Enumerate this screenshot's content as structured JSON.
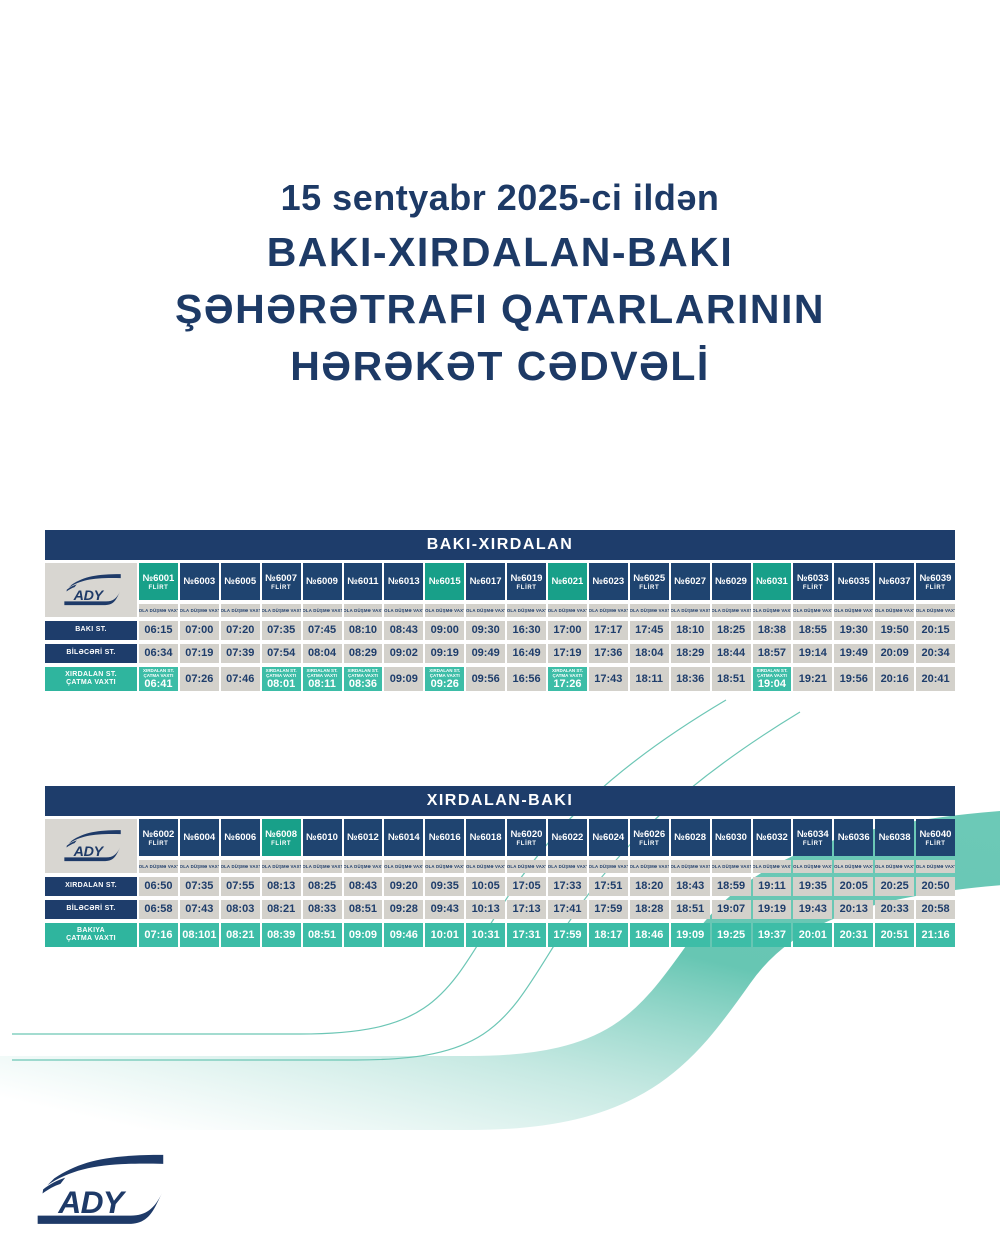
{
  "title": {
    "line1": "15 sentyabr 2025-ci ildən",
    "line2": "BAKI-XIRDALAN-BAKI",
    "line3": "ŞƏHƏRƏTRAFI QATARLARININ",
    "line4": "HƏRƏKƏT CƏDVƏLİ"
  },
  "logo": {
    "text": "ADY"
  },
  "captions": {
    "departure": "YOLA DÜŞMƏ VAXTI",
    "flirt": "FLİRT"
  },
  "colors": {
    "navy_title": "#1d3a66",
    "navy_bar": "#1e3d6b",
    "navy_header_cell": "#1f4470",
    "teal_header": "#18a089",
    "teal_arrival": "#3dbda7",
    "gray_cell": "#d3d1cb",
    "background": "#ffffff"
  },
  "tables": [
    {
      "title": "BAKI-XIRDALAN",
      "row_labels": [
        {
          "lines": [
            "BAKI ST."
          ],
          "teal": false
        },
        {
          "lines": [
            "BİLƏCƏRİ ST."
          ],
          "teal": false
        },
        {
          "lines": [
            "XIRDALAN ST.",
            "ÇATMA VAXTI"
          ],
          "teal": true
        }
      ],
      "arrival_caption": [
        "XIRDALAN ST.",
        "ÇATMA VAXTI"
      ],
      "arrival_row_all_teal": false,
      "columns": [
        {
          "train": "№6001",
          "flirt": true,
          "teal_header": true,
          "teal_arrival": true,
          "times": [
            "06:15",
            "06:34",
            "06:41"
          ]
        },
        {
          "train": "№6003",
          "flirt": false,
          "teal_header": false,
          "teal_arrival": false,
          "times": [
            "07:00",
            "07:19",
            "07:26"
          ]
        },
        {
          "train": "№6005",
          "flirt": false,
          "teal_header": false,
          "teal_arrival": false,
          "times": [
            "07:20",
            "07:39",
            "07:46"
          ]
        },
        {
          "train": "№6007",
          "flirt": true,
          "teal_header": false,
          "teal_arrival": true,
          "times": [
            "07:35",
            "07:54",
            "08:01"
          ]
        },
        {
          "train": "№6009",
          "flirt": false,
          "teal_header": false,
          "teal_arrival": true,
          "times": [
            "07:45",
            "08:04",
            "08:11"
          ]
        },
        {
          "train": "№6011",
          "flirt": false,
          "teal_header": false,
          "teal_arrival": true,
          "times": [
            "08:10",
            "08:29",
            "08:36"
          ]
        },
        {
          "train": "№6013",
          "flirt": false,
          "teal_header": false,
          "teal_arrival": false,
          "times": [
            "08:43",
            "09:02",
            "09:09"
          ]
        },
        {
          "train": "№6015",
          "flirt": false,
          "teal_header": true,
          "teal_arrival": true,
          "times": [
            "09:00",
            "09:19",
            "09:26"
          ]
        },
        {
          "train": "№6017",
          "flirt": false,
          "teal_header": false,
          "teal_arrival": false,
          "times": [
            "09:30",
            "09:49",
            "09:56"
          ]
        },
        {
          "train": "№6019",
          "flirt": true,
          "teal_header": false,
          "teal_arrival": false,
          "times": [
            "16:30",
            "16:49",
            "16:56"
          ]
        },
        {
          "train": "№6021",
          "flirt": false,
          "teal_header": true,
          "teal_arrival": true,
          "times": [
            "17:00",
            "17:19",
            "17:26"
          ]
        },
        {
          "train": "№6023",
          "flirt": false,
          "teal_header": false,
          "teal_arrival": false,
          "times": [
            "17:17",
            "17:36",
            "17:43"
          ]
        },
        {
          "train": "№6025",
          "flirt": true,
          "teal_header": false,
          "teal_arrival": false,
          "times": [
            "17:45",
            "18:04",
            "18:11"
          ]
        },
        {
          "train": "№6027",
          "flirt": false,
          "teal_header": false,
          "teal_arrival": false,
          "times": [
            "18:10",
            "18:29",
            "18:36"
          ]
        },
        {
          "train": "№6029",
          "flirt": false,
          "teal_header": false,
          "teal_arrival": false,
          "times": [
            "18:25",
            "18:44",
            "18:51"
          ]
        },
        {
          "train": "№6031",
          "flirt": false,
          "teal_header": true,
          "teal_arrival": true,
          "times": [
            "18:38",
            "18:57",
            "19:04"
          ]
        },
        {
          "train": "№6033",
          "flirt": true,
          "teal_header": false,
          "teal_arrival": false,
          "times": [
            "18:55",
            "19:14",
            "19:21"
          ]
        },
        {
          "train": "№6035",
          "flirt": false,
          "teal_header": false,
          "teal_arrival": false,
          "times": [
            "19:30",
            "19:49",
            "19:56"
          ]
        },
        {
          "train": "№6037",
          "flirt": false,
          "teal_header": false,
          "teal_arrival": false,
          "times": [
            "19:50",
            "20:09",
            "20:16"
          ]
        },
        {
          "train": "№6039",
          "flirt": true,
          "teal_header": false,
          "teal_arrival": false,
          "times": [
            "20:15",
            "20:34",
            "20:41"
          ]
        }
      ]
    },
    {
      "title": "XIRDALAN-BAKI",
      "row_labels": [
        {
          "lines": [
            "XIRDALAN ST."
          ],
          "teal": false
        },
        {
          "lines": [
            "BİLƏCƏRİ ST."
          ],
          "teal": false
        },
        {
          "lines": [
            "BAKIYA",
            "ÇATMA VAXTI"
          ],
          "teal": true
        }
      ],
      "arrival_caption": [],
      "arrival_row_all_teal": true,
      "columns": [
        {
          "train": "№6002",
          "flirt": true,
          "teal_header": false,
          "teal_arrival": true,
          "times": [
            "06:50",
            "06:58",
            "07:16"
          ]
        },
        {
          "train": "№6004",
          "flirt": false,
          "teal_header": false,
          "teal_arrival": true,
          "times": [
            "07:35",
            "07:43",
            "08:101"
          ]
        },
        {
          "train": "№6006",
          "flirt": false,
          "teal_header": false,
          "teal_arrival": true,
          "times": [
            "07:55",
            "08:03",
            "08:21"
          ]
        },
        {
          "train": "№6008",
          "flirt": true,
          "teal_header": true,
          "teal_arrival": true,
          "times": [
            "08:13",
            "08:21",
            "08:39"
          ]
        },
        {
          "train": "№6010",
          "flirt": false,
          "teal_header": false,
          "teal_arrival": true,
          "times": [
            "08:25",
            "08:33",
            "08:51"
          ]
        },
        {
          "train": "№6012",
          "flirt": false,
          "teal_header": false,
          "teal_arrival": true,
          "times": [
            "08:43",
            "08:51",
            "09:09"
          ]
        },
        {
          "train": "№6014",
          "flirt": false,
          "teal_header": false,
          "teal_arrival": true,
          "times": [
            "09:20",
            "09:28",
            "09:46"
          ]
        },
        {
          "train": "№6016",
          "flirt": false,
          "teal_header": false,
          "teal_arrival": true,
          "times": [
            "09:35",
            "09:43",
            "10:01"
          ]
        },
        {
          "train": "№6018",
          "flirt": false,
          "teal_header": false,
          "teal_arrival": true,
          "times": [
            "10:05",
            "10:13",
            "10:31"
          ]
        },
        {
          "train": "№6020",
          "flirt": true,
          "teal_header": false,
          "teal_arrival": true,
          "times": [
            "17:05",
            "17:13",
            "17:31"
          ]
        },
        {
          "train": "№6022",
          "flirt": false,
          "teal_header": false,
          "teal_arrival": true,
          "times": [
            "17:33",
            "17:41",
            "17:59"
          ]
        },
        {
          "train": "№6024",
          "flirt": false,
          "teal_header": false,
          "teal_arrival": true,
          "times": [
            "17:51",
            "17:59",
            "18:17"
          ]
        },
        {
          "train": "№6026",
          "flirt": true,
          "teal_header": false,
          "teal_arrival": true,
          "times": [
            "18:20",
            "18:28",
            "18:46"
          ]
        },
        {
          "train": "№6028",
          "flirt": false,
          "teal_header": false,
          "teal_arrival": true,
          "times": [
            "18:43",
            "18:51",
            "19:09"
          ]
        },
        {
          "train": "№6030",
          "flirt": false,
          "teal_header": false,
          "teal_arrival": true,
          "times": [
            "18:59",
            "19:07",
            "19:25"
          ]
        },
        {
          "train": "№6032",
          "flirt": false,
          "teal_header": false,
          "teal_arrival": true,
          "times": [
            "19:11",
            "19:19",
            "19:37"
          ]
        },
        {
          "train": "№6034",
          "flirt": true,
          "teal_header": false,
          "teal_arrival": true,
          "times": [
            "19:35",
            "19:43",
            "20:01"
          ]
        },
        {
          "train": "№6036",
          "flirt": false,
          "teal_header": false,
          "teal_arrival": true,
          "times": [
            "20:05",
            "20:13",
            "20:31"
          ]
        },
        {
          "train": "№6038",
          "flirt": false,
          "teal_header": false,
          "teal_arrival": true,
          "times": [
            "20:25",
            "20:33",
            "20:51"
          ]
        },
        {
          "train": "№6040",
          "flirt": true,
          "teal_header": false,
          "teal_arrival": true,
          "times": [
            "20:50",
            "20:58",
            "21:16"
          ]
        }
      ]
    }
  ]
}
